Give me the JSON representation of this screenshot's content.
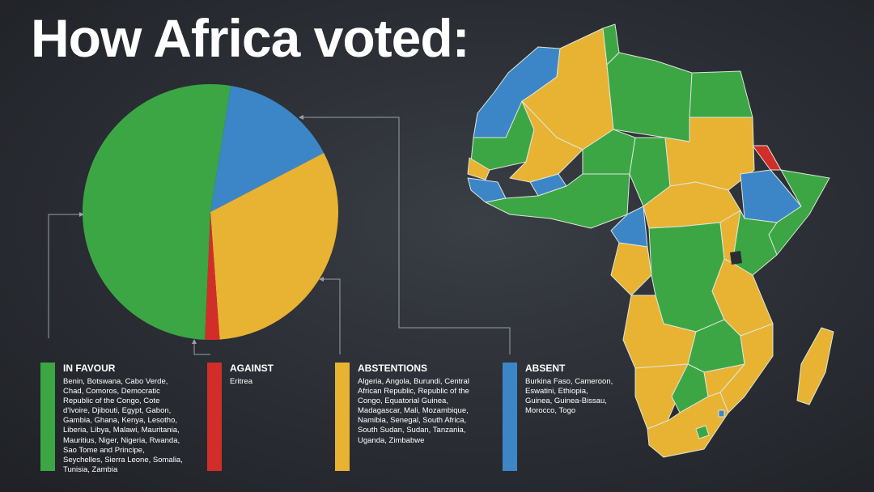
{
  "title": "How Africa voted:",
  "colors": {
    "favour": "#3ca645",
    "against": "#d12e2a",
    "abstentions": "#e8b333",
    "absent": "#3c86c8",
    "background": "#2a2d33"
  },
  "chart_data": {
    "type": "pie",
    "slices": [
      {
        "label": "IN FAVOUR",
        "value": 28,
        "color": "#3ca645"
      },
      {
        "label": "AGAINST",
        "value": 1,
        "color": "#d12e2a"
      },
      {
        "label": "ABSTENTIONS",
        "value": 17,
        "color": "#e8b333"
      },
      {
        "label": "ABSENT",
        "value": 8,
        "color": "#3c86c8"
      }
    ]
  },
  "legend": [
    {
      "heading": "IN FAVOUR",
      "countries": "Benin, Botswana, Cabo Verde, Chad, Comoros, Democratic Republic of the Congo, Cote d'Ivoire, Djibouti, Egypt, Gabon, Gambia, Ghana, Kenya, Lesotho, Liberia, Libya, Malawi, Mauritania, Mauritius, Niger, Nigeria, Rwanda, Sao Tome and Principe, Seychelles, Sierra Leone, Somalia, Tunisia, Zambia"
    },
    {
      "heading": "AGAINST",
      "countries": "Eritrea"
    },
    {
      "heading": "ABSTENTIONS",
      "countries": "Algeria, Angola, Burundi, Central African Republic, Republic of the Congo, Equatorial Guinea, Madagascar, Mali, Mozambique, Namibia, Senegal, South Africa, South Sudan, Sudan, Tanzania, Uganda, Zimbabwe"
    },
    {
      "heading": "ABSENT",
      "countries": "Burkina Faso, Cameroon, Eswatini, Ethiopia, Guinea, Guinea-Bissau, Morocco, Togo"
    }
  ]
}
